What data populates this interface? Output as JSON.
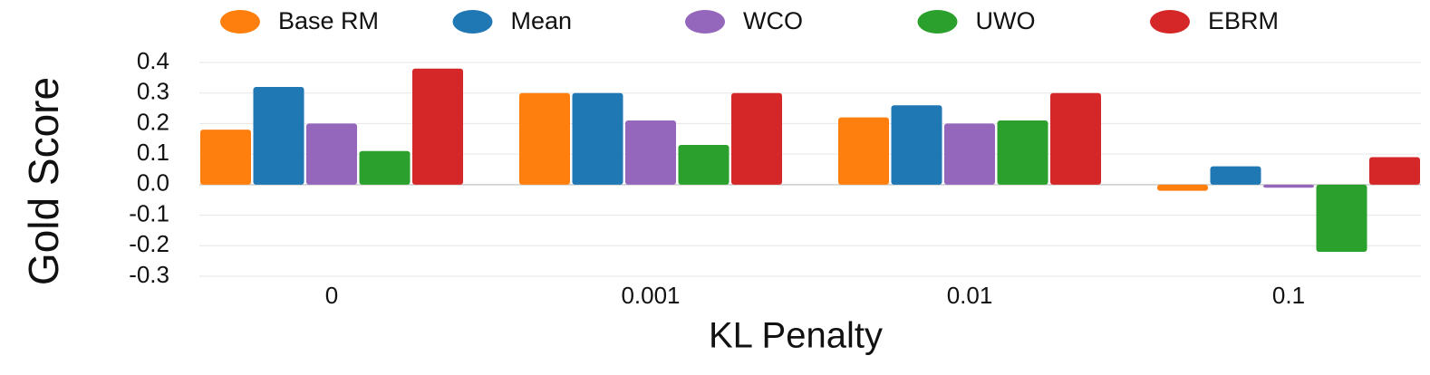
{
  "chart_data": {
    "type": "bar",
    "xlabel": "KL Penalty",
    "ylabel": "Gold Score",
    "categories": [
      "0",
      "0.001",
      "0.01",
      "0.1"
    ],
    "series": [
      {
        "name": "Base RM",
        "color": "#ff7f0e",
        "values": [
          0.18,
          0.3,
          0.22,
          -0.02
        ]
      },
      {
        "name": "Mean",
        "color": "#1f77b4",
        "values": [
          0.32,
          0.3,
          0.26,
          0.06
        ]
      },
      {
        "name": "WCO",
        "color": "#9467bd",
        "values": [
          0.2,
          0.21,
          0.2,
          -0.01
        ]
      },
      {
        "name": "UWO",
        "color": "#2ca02c",
        "values": [
          0.11,
          0.13,
          0.21,
          -0.22
        ]
      },
      {
        "name": "EBRM",
        "color": "#d62728",
        "values": [
          0.38,
          0.3,
          0.3,
          0.09
        ]
      }
    ],
    "ylim": [
      -0.3,
      0.4
    ],
    "yticks": [
      -0.3,
      -0.2,
      -0.1,
      {
        "value": 0,
        "label": "0.0"
      },
      0.1,
      0.2,
      0.3,
      0.4
    ],
    "grid": true,
    "legend": "top"
  }
}
